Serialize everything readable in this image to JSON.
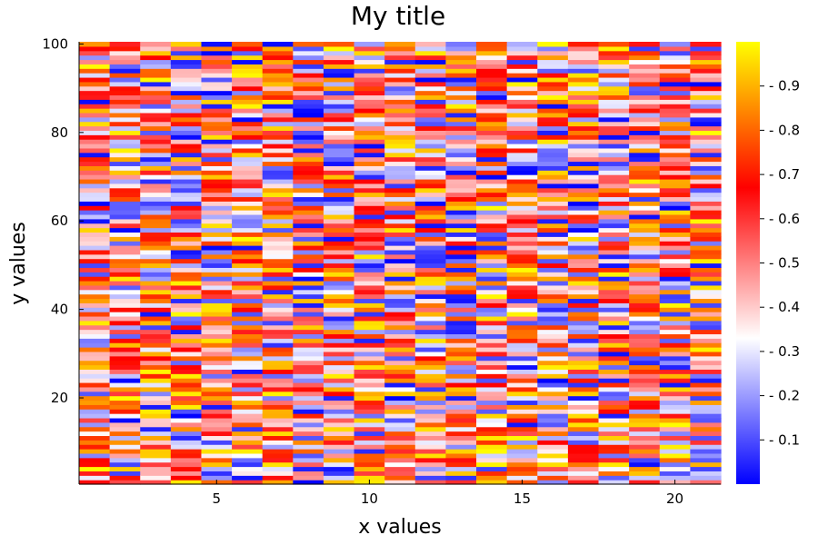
{
  "chart_data": {
    "type": "heatmap",
    "title": "My title",
    "xlabel": "x values",
    "ylabel": "y values",
    "n_columns": 21,
    "n_rows": 100,
    "xlim": [
      0.5,
      21.5
    ],
    "ylim": [
      0.5,
      100.5
    ],
    "x_ticks": [
      5,
      10,
      15,
      20
    ],
    "y_ticks": [
      20,
      40,
      60,
      80,
      100
    ],
    "colorbar": {
      "range": [
        0,
        1
      ],
      "ticks": [
        0.1,
        0.2,
        0.3,
        0.4,
        0.5,
        0.6,
        0.7,
        0.8,
        0.9
      ],
      "colors": [
        {
          "stop": 0.0,
          "color": "#0000ff"
        },
        {
          "stop": 0.33,
          "color": "#ffffff"
        },
        {
          "stop": 0.67,
          "color": "#ff0000"
        },
        {
          "stop": 0.85,
          "color": "#ff8c00"
        },
        {
          "stop": 1.0,
          "color": "#ffff00"
        }
      ]
    },
    "values_note": "uniform random values in [0,1] per cell",
    "grid": false,
    "legend": "colorbar-right"
  }
}
